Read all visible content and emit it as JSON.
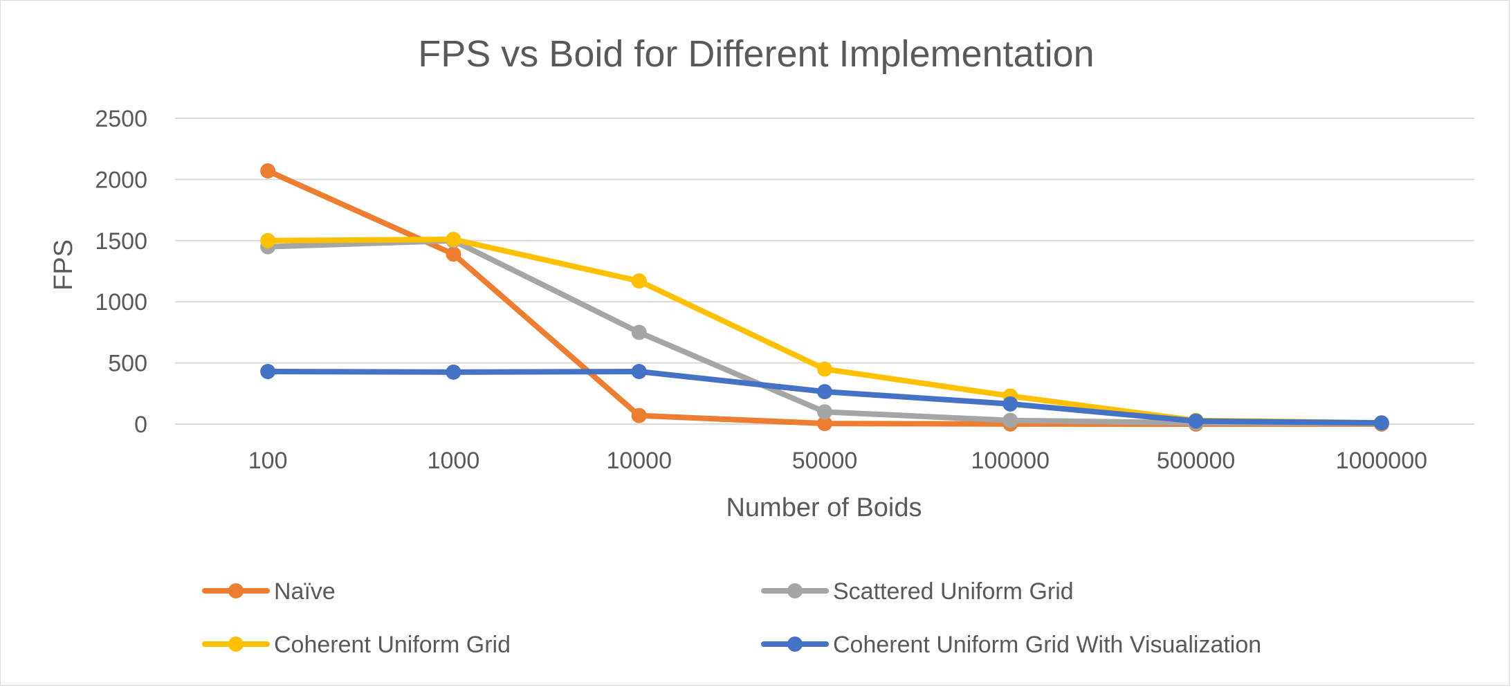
{
  "chart_data": {
    "type": "line",
    "title": "FPS vs Boid for Different Implementation",
    "xlabel": "Number of Boids",
    "ylabel": "FPS",
    "ylim": [
      0,
      2500
    ],
    "yticks": [
      "0",
      "500",
      "1000",
      "1500",
      "2000",
      "2500"
    ],
    "grid": true,
    "legend_position": "bottom",
    "categories": [
      "100",
      "1000",
      "10000",
      "50000",
      "100000",
      "500000",
      "1000000"
    ],
    "series": [
      {
        "name": "Naïve",
        "color": "#ED7D31",
        "values": [
          2070,
          1390,
          70,
          5,
          1,
          0,
          0
        ]
      },
      {
        "name": "Scattered Uniform Grid",
        "color": "#A5A5A5",
        "values": [
          1450,
          1500,
          750,
          100,
          30,
          10,
          5
        ]
      },
      {
        "name": "Coherent Uniform Grid",
        "color": "#FFC000",
        "values": [
          1500,
          1510,
          1170,
          450,
          230,
          30,
          10
        ]
      },
      {
        "name": "Coherent Uniform Grid With Visualization",
        "color": "#4472C4",
        "values": [
          430,
          425,
          430,
          265,
          165,
          25,
          10
        ]
      }
    ]
  }
}
